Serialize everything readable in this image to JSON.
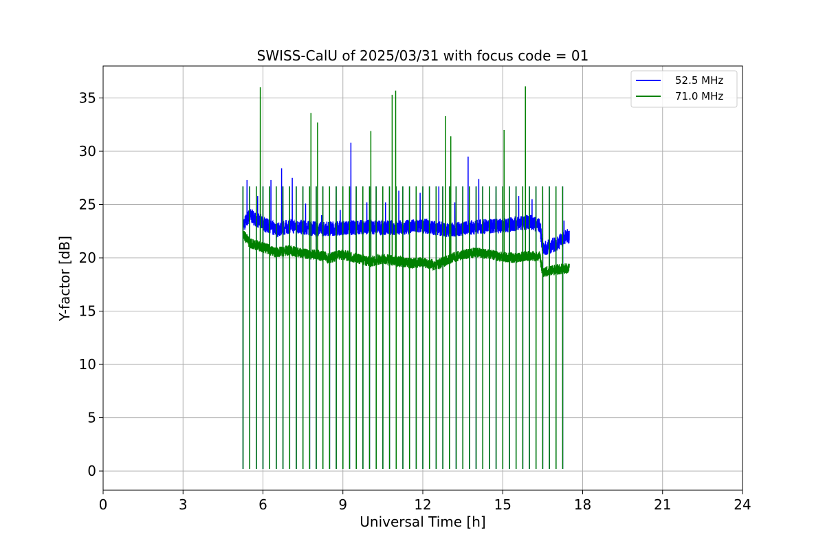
{
  "chart_data": {
    "type": "line",
    "title": "SWISS-CalU of 2025/03/31 with focus code = 01",
    "xlabel": "Universal Time [h]",
    "ylabel": "Y-factor [dB]",
    "xlim": [
      0,
      24
    ],
    "ylim": [
      -1.8,
      38
    ],
    "xticks": [
      0,
      3,
      6,
      9,
      12,
      15,
      18,
      21,
      24
    ],
    "yticks": [
      0,
      5,
      10,
      15,
      20,
      25,
      30,
      35
    ],
    "grid": true,
    "legend_position": "top-right",
    "time_range_h": [
      5.25,
      17.5
    ],
    "series": [
      {
        "name": "52.5 MHz",
        "color": "#0000ff",
        "baseline": [
          [
            5.25,
            23.0
          ],
          [
            5.5,
            24.0
          ],
          [
            6.0,
            23.2
          ],
          [
            6.5,
            22.6
          ],
          [
            7.0,
            23.0
          ],
          [
            8.0,
            22.7
          ],
          [
            9.0,
            22.8
          ],
          [
            10.0,
            22.9
          ],
          [
            11.0,
            22.8
          ],
          [
            12.0,
            23.0
          ],
          [
            12.5,
            22.8
          ],
          [
            13.0,
            22.6
          ],
          [
            14.0,
            22.9
          ],
          [
            15.0,
            23.0
          ],
          [
            15.5,
            23.2
          ],
          [
            16.0,
            23.4
          ],
          [
            16.4,
            23.0
          ],
          [
            16.5,
            20.8
          ],
          [
            17.0,
            21.3
          ],
          [
            17.4,
            22.0
          ]
        ],
        "spikes": [
          [
            5.4,
            27.3
          ],
          [
            5.8,
            25.8
          ],
          [
            6.3,
            27.3
          ],
          [
            6.7,
            28.4
          ],
          [
            7.1,
            27.5
          ],
          [
            7.6,
            25.1
          ],
          [
            8.2,
            24.0
          ],
          [
            8.9,
            24.5
          ],
          [
            9.3,
            30.8
          ],
          [
            9.9,
            25.2
          ],
          [
            10.6,
            25.2
          ],
          [
            11.1,
            26.3
          ],
          [
            11.9,
            26.1
          ],
          [
            12.6,
            26.7
          ],
          [
            13.2,
            25.2
          ],
          [
            13.7,
            29.5
          ],
          [
            14.1,
            27.4
          ],
          [
            14.5,
            25.7
          ],
          [
            15.0,
            24.0
          ],
          [
            15.6,
            25.8
          ],
          [
            16.1,
            25.5
          ],
          [
            16.5,
            24.8
          ],
          [
            17.3,
            23.5
          ]
        ]
      },
      {
        "name": "71.0 MHz",
        "color": "#008000",
        "baseline": [
          [
            5.25,
            22.3
          ],
          [
            5.5,
            21.4
          ],
          [
            6.0,
            21.0
          ],
          [
            6.5,
            20.5
          ],
          [
            7.0,
            20.7
          ],
          [
            7.5,
            20.4
          ],
          [
            8.0,
            20.3
          ],
          [
            8.5,
            20.0
          ],
          [
            9.0,
            20.3
          ],
          [
            9.5,
            20.0
          ],
          [
            10.0,
            19.6
          ],
          [
            10.5,
            19.9
          ],
          [
            11.0,
            19.7
          ],
          [
            11.5,
            19.5
          ],
          [
            12.0,
            19.6
          ],
          [
            12.5,
            19.3
          ],
          [
            13.0,
            19.9
          ],
          [
            13.5,
            20.3
          ],
          [
            14.0,
            20.5
          ],
          [
            14.5,
            20.3
          ],
          [
            15.0,
            20.1
          ],
          [
            15.5,
            20.0
          ],
          [
            16.0,
            20.2
          ],
          [
            16.4,
            20.1
          ],
          [
            16.5,
            18.6
          ],
          [
            17.0,
            18.9
          ],
          [
            17.4,
            19.0
          ]
        ],
        "spikes": [
          [
            5.9,
            36.0
          ],
          [
            7.8,
            33.6
          ],
          [
            8.05,
            32.7
          ],
          [
            10.05,
            31.9
          ],
          [
            10.85,
            35.3
          ],
          [
            10.98,
            35.7
          ],
          [
            12.85,
            33.3
          ],
          [
            13.05,
            31.4
          ],
          [
            15.05,
            32.0
          ],
          [
            15.85,
            36.1
          ]
        ],
        "calibration_pulses": {
          "start_h": 5.25,
          "end_h": 17.25,
          "interval_h": 0.25,
          "high_db": 26.7,
          "low_db": 0.2
        }
      }
    ]
  }
}
